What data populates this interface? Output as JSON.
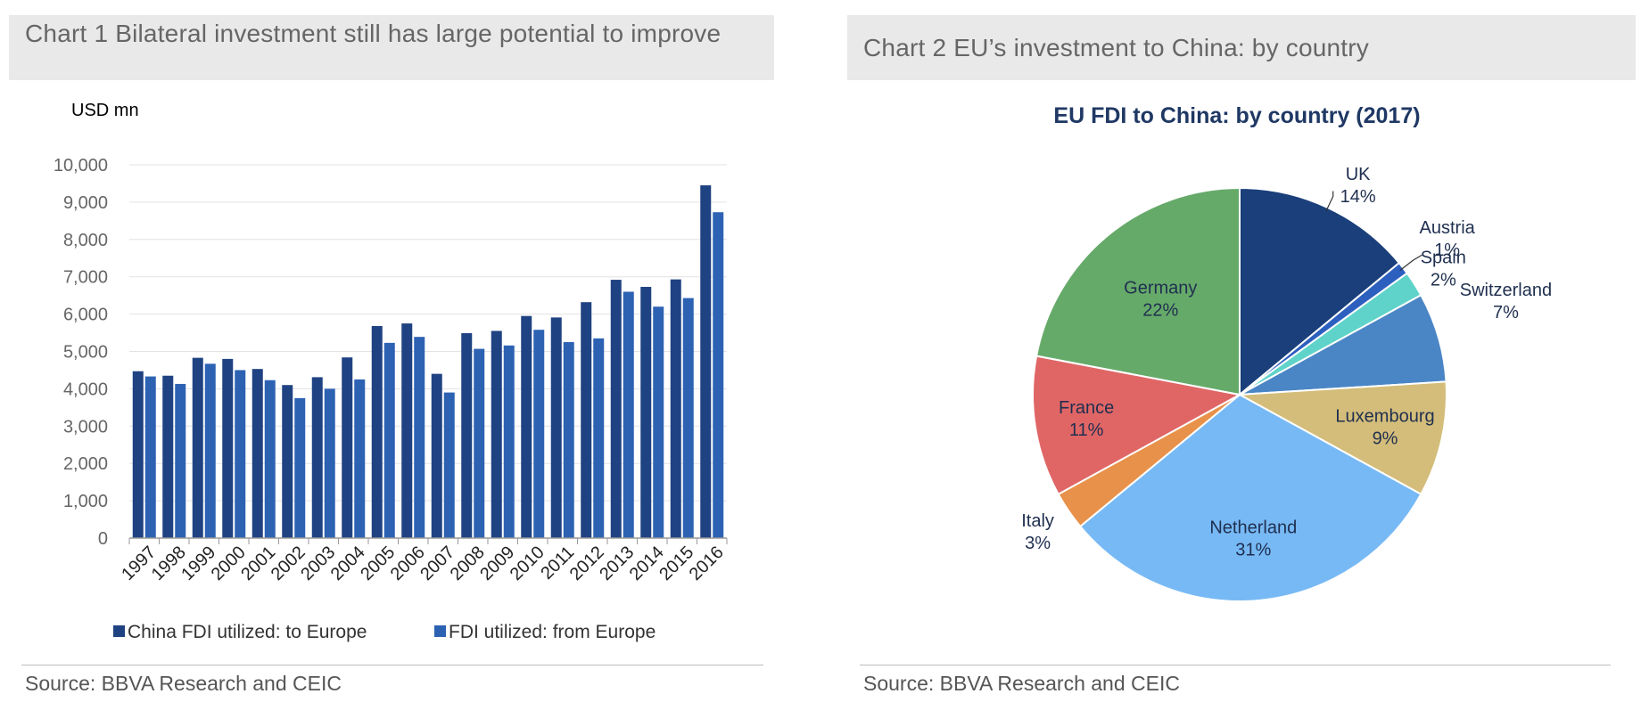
{
  "left_panel": {
    "title": "Chart 1 Bilateral investment still has large potential to improve",
    "source": "Source: BBVA Research and CEIC"
  },
  "right_panel": {
    "title": "Chart 2 EU’s investment to China: by country",
    "source": "Source: BBVA Research and CEIC"
  },
  "colors": {
    "series1": "#1f4282",
    "series2": "#2d62b3",
    "grid": "#e3e3e3",
    "axis": "#999999",
    "title_bg": "#e9e9e9",
    "pie_title": "#1f3864"
  },
  "chart_data": [
    {
      "type": "bar",
      "title": "",
      "unit_label": "USD mn",
      "xlabel": "",
      "ylabel": "",
      "ylim": [
        0,
        10000
      ],
      "yticks": [
        0,
        1000,
        2000,
        3000,
        4000,
        5000,
        6000,
        7000,
        8000,
        9000,
        10000
      ],
      "ytick_labels": [
        "0",
        "1,000",
        "2,000",
        "3,000",
        "4,000",
        "5,000",
        "6,000",
        "7,000",
        "8,000",
        "9,000",
        "10,000"
      ],
      "grid": true,
      "legend_position": "bottom",
      "categories": [
        "1997",
        "1998",
        "1999",
        "2000",
        "2001",
        "2002",
        "2003",
        "2004",
        "2005",
        "2006",
        "2007",
        "2008",
        "2009",
        "2010",
        "2011",
        "2012",
        "2013",
        "2014",
        "2015",
        "2016"
      ],
      "series": [
        {
          "name": "China FDI utilized: to Europe",
          "values": [
            4470,
            4350,
            4830,
            4800,
            4530,
            4100,
            4310,
            4840,
            5680,
            5750,
            4400,
            5490,
            5550,
            5950,
            5910,
            6320,
            6920,
            6730,
            6930,
            9450
          ]
        },
        {
          "name": "FDI utilized: from Europe",
          "values": [
            4330,
            4130,
            4670,
            4500,
            4230,
            3750,
            4000,
            4250,
            5230,
            5390,
            3900,
            5070,
            5160,
            5580,
            5250,
            5350,
            6600,
            6200,
            6430,
            8730
          ]
        }
      ]
    },
    {
      "type": "pie",
      "title": "EU FDI to China: by country (2017)",
      "legend_position": "none",
      "slices": [
        {
          "label": "UK",
          "pct_label": "14%",
          "value": 14,
          "color": "#1a3f7a"
        },
        {
          "label": "Austria",
          "pct_label": "1%",
          "value": 1,
          "color": "#2d5fbf"
        },
        {
          "label": "Spain",
          "pct_label": "2%",
          "value": 2,
          "color": "#5fd3c9"
        },
        {
          "label": "Switzerland",
          "pct_label": "7%",
          "value": 7,
          "color": "#4a86c5"
        },
        {
          "label": "Luxembourg",
          "pct_label": "9%",
          "value": 9,
          "color": "#d4bd7a"
        },
        {
          "label": "Netherland",
          "pct_label": "31%",
          "value": 31,
          "color": "#77b9f5"
        },
        {
          "label": "Italy",
          "pct_label": "3%",
          "value": 3,
          "color": "#e8914a"
        },
        {
          "label": "France",
          "pct_label": "11%",
          "value": 11,
          "color": "#e06666"
        },
        {
          "label": "Germany",
          "pct_label": "22%",
          "value": 22,
          "color": "#66aa6a"
        }
      ]
    }
  ]
}
